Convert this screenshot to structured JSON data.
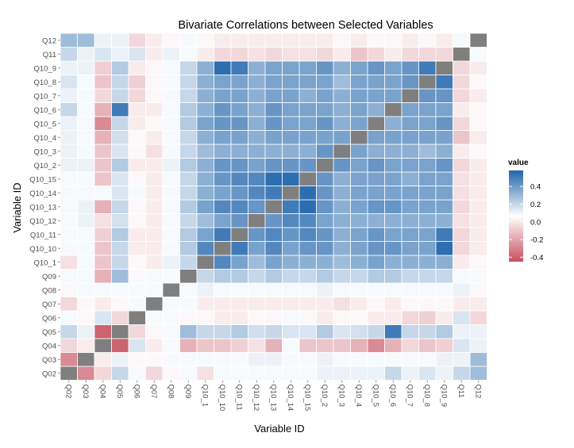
{
  "chart_data": {
    "type": "heatmap",
    "title": "Bivariate Correlations between Selected Variables",
    "xlabel": "Variable ID",
    "ylabel": "Variable ID",
    "variables": [
      "Q02",
      "Q03",
      "Q04",
      "Q05",
      "Q06",
      "Q07",
      "Q08",
      "Q09",
      "Q10_1",
      "Q10_10",
      "Q10_11",
      "Q10_12",
      "Q10_13",
      "Q10_14",
      "Q10_15",
      "Q10_2",
      "Q10_3",
      "Q10_4",
      "Q10_5",
      "Q10_6",
      "Q10_7",
      "Q10_8",
      "Q10_9",
      "Q11",
      "Q12"
    ],
    "legend": {
      "title": "value",
      "position": "right",
      "ticks": [
        0.4,
        0.2,
        0.0,
        -0.2,
        -0.4
      ],
      "tick_labels": [
        "0.4",
        "0.2",
        "0.0",
        "-0.2",
        "-0.4"
      ],
      "range": [
        -0.45,
        0.58
      ]
    },
    "colors": {
      "low": "#c6505f",
      "mid": "#ffffff",
      "high": "#2166ac",
      "diagonal": "#7f7f7f",
      "panel": "#ebebeb"
    },
    "diagonal_fill": "na",
    "matrix": [
      [
        null,
        -0.3,
        -0.1,
        0.15,
        0.02,
        -0.1,
        -0.02,
        0.02,
        -0.08,
        0.02,
        0.02,
        0.02,
        0.02,
        0.02,
        0.02,
        0.05,
        0.05,
        0.05,
        0.05,
        0.15,
        0.05,
        0.1,
        0.05,
        0.15,
        0.25
      ],
      [
        -0.3,
        null,
        -0.05,
        0.05,
        -0.02,
        -0.02,
        0.02,
        0.02,
        0.02,
        0.02,
        0.02,
        0.05,
        0.05,
        0.02,
        0.02,
        0.05,
        0.02,
        0.02,
        0.02,
        0.02,
        0.02,
        0.02,
        0.05,
        0.05,
        0.25
      ],
      [
        -0.1,
        -0.05,
        null,
        -0.4,
        0.1,
        -0.05,
        0.02,
        -0.2,
        -0.15,
        -0.15,
        -0.12,
        -0.08,
        -0.2,
        0.02,
        -0.15,
        -0.15,
        -0.15,
        -0.2,
        -0.3,
        -0.2,
        -0.1,
        -0.15,
        -0.12,
        0.1,
        0.05
      ],
      [
        0.15,
        0.05,
        -0.4,
        null,
        -0.1,
        -0.02,
        0.02,
        0.25,
        0.15,
        0.15,
        0.2,
        0.12,
        0.15,
        0.1,
        0.1,
        0.2,
        0.1,
        0.12,
        0.15,
        0.5,
        0.15,
        0.15,
        0.2,
        0.05,
        0.05
      ],
      [
        0.02,
        -0.02,
        0.1,
        -0.1,
        null,
        0.02,
        0.02,
        -0.02,
        -0.02,
        -0.05,
        -0.05,
        -0.02,
        -0.02,
        0.02,
        -0.02,
        -0.05,
        -0.02,
        -0.02,
        -0.05,
        -0.05,
        -0.1,
        -0.12,
        -0.05,
        0.1,
        -0.1
      ],
      [
        -0.1,
        -0.02,
        -0.05,
        -0.02,
        0.02,
        null,
        0.02,
        0.02,
        -0.05,
        -0.05,
        -0.05,
        -0.05,
        -0.05,
        -0.05,
        -0.05,
        -0.05,
        -0.08,
        -0.05,
        -0.02,
        -0.05,
        -0.02,
        -0.02,
        -0.02,
        -0.05,
        -0.05
      ],
      [
        -0.02,
        0.02,
        0.02,
        0.02,
        0.02,
        0.02,
        null,
        0.02,
        0.05,
        0.02,
        0.02,
        0.02,
        0.02,
        0.02,
        0.02,
        0.05,
        0.02,
        0.02,
        0.02,
        0.02,
        0.02,
        0.02,
        0.02,
        0.05,
        -0.02
      ],
      [
        0.02,
        0.02,
        -0.2,
        0.25,
        -0.02,
        0.02,
        0.02,
        null,
        0.15,
        0.2,
        0.2,
        0.15,
        0.2,
        0.15,
        0.15,
        0.2,
        0.15,
        0.15,
        0.2,
        0.2,
        0.15,
        0.15,
        0.15,
        0.02,
        0.02
      ],
      [
        -0.08,
        0.02,
        -0.15,
        0.15,
        -0.02,
        -0.05,
        0.05,
        0.15,
        null,
        0.45,
        0.35,
        0.25,
        0.35,
        0.3,
        0.3,
        0.3,
        0.25,
        0.3,
        0.35,
        0.3,
        0.3,
        0.3,
        0.3,
        -0.05,
        -0.02
      ],
      [
        0.02,
        0.02,
        -0.15,
        0.15,
        -0.05,
        -0.05,
        0.02,
        0.2,
        0.45,
        null,
        0.5,
        0.35,
        0.45,
        0.35,
        0.4,
        0.4,
        0.3,
        0.35,
        0.4,
        0.4,
        0.35,
        0.35,
        0.55,
        -0.1,
        -0.05
      ],
      [
        0.02,
        0.02,
        -0.12,
        0.2,
        -0.05,
        -0.05,
        0.02,
        0.2,
        0.35,
        0.5,
        null,
        0.4,
        0.45,
        0.4,
        0.45,
        0.4,
        0.3,
        0.35,
        0.4,
        0.35,
        0.35,
        0.35,
        0.5,
        -0.1,
        -0.05
      ],
      [
        0.02,
        0.05,
        -0.08,
        0.12,
        -0.02,
        -0.05,
        0.02,
        0.15,
        0.25,
        0.35,
        0.4,
        null,
        0.4,
        0.45,
        0.45,
        0.35,
        0.3,
        0.3,
        0.3,
        0.3,
        0.3,
        0.3,
        0.3,
        -0.08,
        -0.05
      ],
      [
        0.02,
        0.05,
        -0.2,
        0.15,
        -0.02,
        -0.05,
        0.02,
        0.2,
        0.35,
        0.45,
        0.45,
        0.4,
        null,
        0.5,
        0.55,
        0.4,
        0.3,
        0.35,
        0.4,
        0.4,
        0.35,
        0.35,
        0.35,
        -0.1,
        -0.05
      ],
      [
        0.02,
        0.02,
        0.02,
        0.1,
        0.02,
        -0.05,
        0.02,
        0.15,
        0.3,
        0.35,
        0.4,
        0.45,
        0.5,
        null,
        0.55,
        0.4,
        0.3,
        0.35,
        0.35,
        0.35,
        0.35,
        0.35,
        0.35,
        -0.08,
        -0.05
      ],
      [
        0.02,
        0.02,
        -0.15,
        0.1,
        -0.02,
        -0.05,
        0.02,
        0.15,
        0.3,
        0.4,
        0.45,
        0.45,
        0.55,
        0.55,
        null,
        0.4,
        0.3,
        0.35,
        0.35,
        0.35,
        0.3,
        0.35,
        0.35,
        -0.08,
        -0.05
      ],
      [
        0.05,
        0.05,
        -0.15,
        0.2,
        -0.05,
        -0.05,
        0.05,
        0.2,
        0.3,
        0.4,
        0.4,
        0.35,
        0.4,
        0.4,
        0.4,
        null,
        0.4,
        0.35,
        0.4,
        0.35,
        0.35,
        0.35,
        0.4,
        -0.1,
        -0.05
      ],
      [
        0.05,
        0.02,
        -0.15,
        0.1,
        -0.02,
        -0.08,
        0.02,
        0.15,
        0.25,
        0.3,
        0.3,
        0.3,
        0.3,
        0.3,
        0.3,
        0.4,
        null,
        0.35,
        0.3,
        0.3,
        0.3,
        0.25,
        0.3,
        -0.05,
        -0.02
      ],
      [
        0.05,
        0.02,
        -0.2,
        0.12,
        -0.02,
        -0.05,
        0.02,
        0.15,
        0.3,
        0.35,
        0.35,
        0.3,
        0.35,
        0.35,
        0.35,
        0.35,
        0.35,
        null,
        0.35,
        0.35,
        0.35,
        0.35,
        0.35,
        -0.15,
        -0.05
      ],
      [
        0.05,
        0.02,
        -0.3,
        0.15,
        -0.05,
        -0.02,
        0.02,
        0.2,
        0.35,
        0.4,
        0.4,
        0.3,
        0.4,
        0.35,
        0.35,
        0.4,
        0.3,
        0.35,
        null,
        0.3,
        0.35,
        0.35,
        0.4,
        -0.1,
        -0.02
      ],
      [
        0.15,
        0.02,
        -0.2,
        0.5,
        -0.05,
        -0.05,
        0.02,
        0.2,
        0.3,
        0.4,
        0.35,
        0.3,
        0.4,
        0.35,
        0.35,
        0.35,
        0.3,
        0.35,
        0.3,
        null,
        0.35,
        0.35,
        0.35,
        -0.05,
        -0.02
      ],
      [
        0.05,
        0.02,
        -0.1,
        0.15,
        -0.1,
        -0.02,
        0.02,
        0.15,
        0.3,
        0.35,
        0.35,
        0.3,
        0.35,
        0.35,
        0.3,
        0.35,
        0.3,
        0.35,
        0.35,
        0.35,
        null,
        0.4,
        0.4,
        -0.1,
        -0.05
      ],
      [
        0.1,
        0.02,
        -0.15,
        0.15,
        -0.12,
        -0.02,
        0.02,
        0.15,
        0.3,
        0.35,
        0.35,
        0.3,
        0.35,
        0.35,
        0.35,
        0.35,
        0.25,
        0.35,
        0.35,
        0.35,
        0.4,
        null,
        0.5,
        -0.1,
        -0.02
      ],
      [
        0.05,
        0.05,
        -0.12,
        0.2,
        -0.05,
        -0.02,
        0.02,
        0.15,
        0.3,
        0.55,
        0.5,
        0.3,
        0.35,
        0.35,
        0.35,
        0.4,
        0.3,
        0.35,
        0.4,
        0.35,
        0.4,
        0.5,
        null,
        -0.1,
        -0.05
      ],
      [
        0.15,
        0.05,
        0.1,
        0.05,
        0.1,
        -0.05,
        0.05,
        0.02,
        -0.05,
        -0.1,
        -0.1,
        -0.08,
        -0.1,
        -0.08,
        -0.08,
        -0.1,
        -0.05,
        -0.15,
        -0.1,
        -0.05,
        -0.1,
        -0.1,
        -0.1,
        null,
        0.02
      ],
      [
        0.25,
        0.25,
        0.05,
        0.05,
        -0.1,
        -0.05,
        -0.02,
        0.02,
        -0.02,
        -0.05,
        -0.05,
        -0.05,
        -0.05,
        -0.05,
        -0.05,
        -0.05,
        -0.02,
        -0.05,
        -0.02,
        -0.02,
        -0.05,
        -0.02,
        -0.05,
        0.02,
        null
      ]
    ]
  }
}
